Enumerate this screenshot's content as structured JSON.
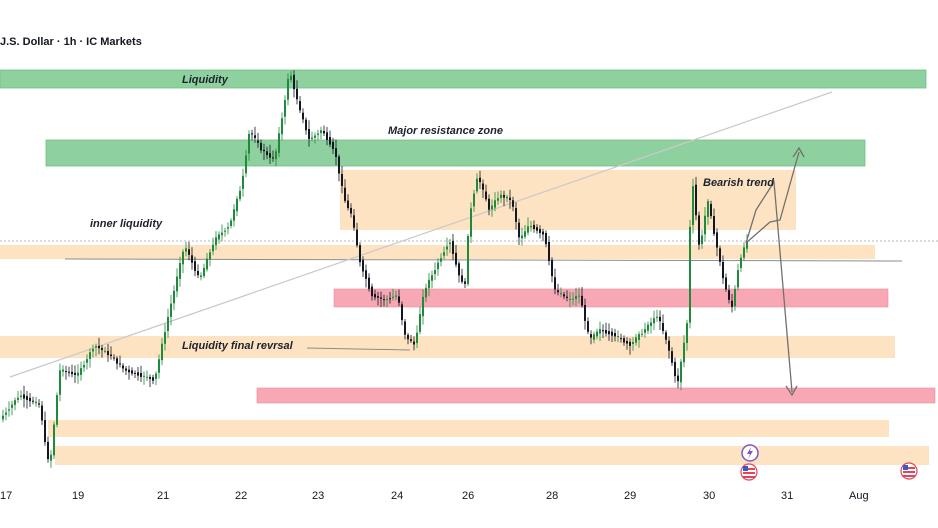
{
  "header": {
    "title": "J.S. Dollar · 1h · IC Markets"
  },
  "colors": {
    "up": "#26a69a",
    "down": "#131722",
    "candle": "#1f8a3b",
    "green_zone": "#8fd19e",
    "orange_zone": "#fde3c2",
    "red_zone": "#f7a8b4",
    "trend_line": "#c9c9c9"
  },
  "chart_data": {
    "type": "candlestick",
    "x_ticks": [
      "17",
      "19",
      "21",
      "22",
      "23",
      "24",
      "26",
      "28",
      "29",
      "30",
      "31",
      "Aug"
    ],
    "annotations": {
      "liquidity": "Liquidity",
      "major_resistance": "Major resistance zone",
      "inner_liquidity": "inner liquidity",
      "liquidity_final_reversal": "Liquidity final revrsal",
      "bearish_trend": "Bearish trend"
    },
    "zones": [
      {
        "name": "liquidity-zone",
        "kind": "green"
      },
      {
        "name": "major-resistance-zone",
        "kind": "green"
      },
      {
        "name": "supply-zone",
        "kind": "orange"
      },
      {
        "name": "inner-liquidity-zone",
        "kind": "orange"
      },
      {
        "name": "mid-demand-zone",
        "kind": "red"
      },
      {
        "name": "final-reversal-zone",
        "kind": "orange"
      },
      {
        "name": "lower-demand-zone",
        "kind": "red"
      },
      {
        "name": "bottom-zone-1",
        "kind": "orange"
      },
      {
        "name": "bottom-zone-2",
        "kind": "orange"
      }
    ],
    "grid": false,
    "legend": "none"
  }
}
